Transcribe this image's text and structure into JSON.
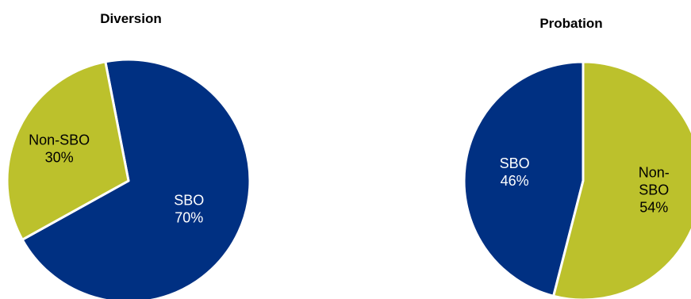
{
  "colors": {
    "sbo": "#003082",
    "non_sbo": "#BCC12C",
    "label_light": "#ffffff",
    "label_dark": "#000000"
  },
  "chart_data": [
    {
      "type": "pie",
      "title": "Diversion",
      "slices": [
        {
          "category": "SBO",
          "value": 70,
          "pct_label": "70%",
          "color": "#003082",
          "label_lines": [
            "SBO",
            "70%"
          ]
        },
        {
          "category": "Non-SBO",
          "value": 30,
          "pct_label": "30%",
          "color": "#BCC12C",
          "label_lines": [
            "Non-SBO",
            "30%"
          ]
        }
      ]
    },
    {
      "type": "pie",
      "title": "Probation",
      "slices": [
        {
          "category": "SBO",
          "value": 46,
          "pct_label": "46%",
          "color": "#003082",
          "label_lines": [
            "SBO",
            "46%"
          ]
        },
        {
          "category": "Non-SBO",
          "value": 54,
          "pct_label": "54%",
          "color": "#BCC12C",
          "label_lines": [
            "Non-",
            "SBO",
            "54%"
          ]
        }
      ]
    }
  ]
}
